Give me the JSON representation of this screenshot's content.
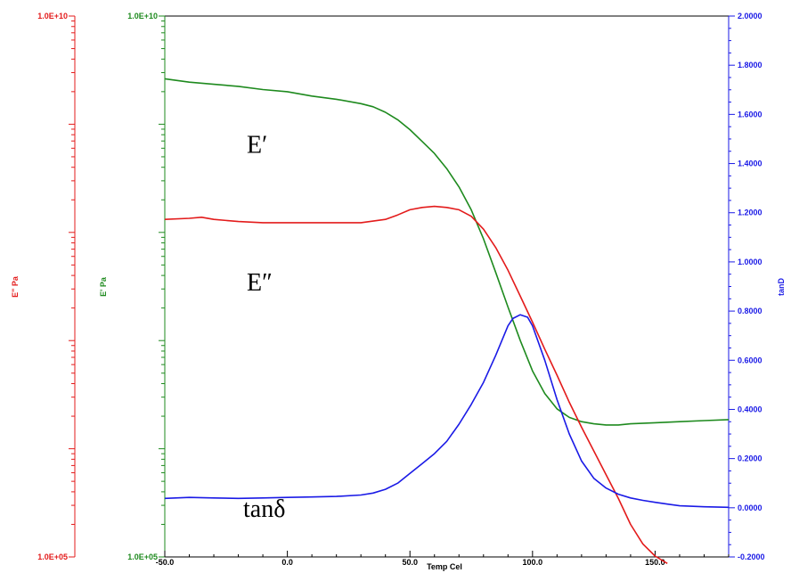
{
  "chart_data": {
    "type": "line",
    "title": "",
    "xlabel": "Temp Cel",
    "xlim": [
      -50,
      180
    ],
    "x_ticks": [
      -50,
      0,
      50,
      100,
      150
    ],
    "x_tick_labels": [
      "-50.0",
      "0.0",
      "50.0",
      "100.0",
      "150.0"
    ],
    "grid": false,
    "legend": "none",
    "axes": {
      "e_double_prime": {
        "label": "E\" Pa",
        "scale": "log",
        "lim": [
          100000,
          10000000000
        ],
        "tick_labels": [
          "1.0E+05",
          "1.0E+10"
        ],
        "color": "#e31b1b"
      },
      "e_prime": {
        "label": "E' Pa",
        "scale": "log",
        "lim": [
          100000,
          10000000000
        ],
        "tick_labels": [
          "1.0E+05",
          "1.0E+10"
        ],
        "color": "#1e8a1e"
      },
      "tan_d": {
        "label": "tanD",
        "scale": "linear",
        "lim": [
          -0.2,
          2.0
        ],
        "ticks": [
          -0.2,
          0.0,
          0.2,
          0.4,
          0.6,
          0.8,
          1.0,
          1.2,
          1.4,
          1.6,
          1.8,
          2.0
        ],
        "tick_labels": [
          "-0.2000",
          "0.0000",
          "0.2000",
          "0.4000",
          "0.6000",
          "0.8000",
          "1.0000",
          "1.2000",
          "1.4000",
          "1.6000",
          "1.8000",
          "2.0000"
        ],
        "color": "#1a1ae6"
      }
    },
    "series": [
      {
        "key": "e_prime",
        "axis": "e_prime",
        "color": "#1e8a1e",
        "x": [
          -50,
          -40,
          -30,
          -20,
          -10,
          0,
          10,
          20,
          30,
          35,
          40,
          45,
          50,
          55,
          60,
          65,
          70,
          75,
          80,
          85,
          90,
          95,
          100,
          105,
          110,
          115,
          120,
          125,
          130,
          135,
          140,
          150,
          160,
          170,
          180
        ],
        "y": [
          2630000000,
          2450000000,
          2340000000,
          2240000000,
          2090000000,
          2000000000,
          1820000000,
          1700000000,
          1550000000,
          1450000000,
          1290000000,
          1100000000,
          891000000,
          692000000,
          537000000,
          389000000,
          263000000,
          162000000,
          87100000,
          42700000,
          20400000,
          10000000,
          5250000,
          3240000,
          2340000,
          1950000,
          1780000,
          1700000,
          1660000,
          1660000,
          1700000,
          1740000,
          1780000,
          1820000,
          1860000
        ]
      },
      {
        "key": "e_double_prime",
        "axis": "e_double_prime",
        "color": "#e31b1b",
        "x": [
          -50,
          -40,
          -35,
          -30,
          -20,
          -10,
          0,
          10,
          20,
          30,
          40,
          45,
          50,
          55,
          60,
          65,
          70,
          75,
          80,
          85,
          90,
          95,
          100,
          105,
          110,
          115,
          120,
          125,
          130,
          135,
          140,
          145,
          150,
          155
        ],
        "y": [
          132000000,
          135000000,
          138000000,
          132000000,
          126000000,
          123000000,
          123000000,
          123000000,
          123000000,
          123000000,
          132000000,
          145000000,
          162000000,
          170000000,
          174000000,
          170000000,
          162000000,
          141000000,
          107000000,
          72400000,
          44700000,
          25700000,
          14800000,
          8320000,
          4790000,
          2690000,
          1580000,
          955000,
          575000,
          347000,
          200000,
          132000,
          102000,
          87100
        ]
      },
      {
        "key": "tan_d",
        "axis": "tan_d",
        "color": "#1a1ae6",
        "x": [
          -50,
          -40,
          -30,
          -20,
          -10,
          0,
          10,
          20,
          30,
          35,
          40,
          45,
          50,
          55,
          60,
          65,
          70,
          75,
          80,
          85,
          90,
          92,
          95,
          98,
          100,
          105,
          110,
          115,
          120,
          125,
          130,
          135,
          140,
          145,
          150,
          155,
          160,
          170,
          180
        ],
        "y": [
          0.038,
          0.042,
          0.04,
          0.038,
          0.04,
          0.042,
          0.044,
          0.046,
          0.052,
          0.06,
          0.075,
          0.1,
          0.14,
          0.18,
          0.22,
          0.27,
          0.34,
          0.42,
          0.51,
          0.62,
          0.74,
          0.77,
          0.785,
          0.775,
          0.74,
          0.6,
          0.44,
          0.3,
          0.19,
          0.12,
          0.08,
          0.055,
          0.04,
          0.03,
          0.022,
          0.015,
          0.008,
          0.004,
          0.002
        ]
      }
    ],
    "annotations": [
      {
        "text": "E′",
        "x": 0,
        "y": 1.48
      },
      {
        "text": "E″",
        "x": 0,
        "y": 0.92
      },
      {
        "text": "tanδ",
        "x": 0,
        "y": 0.0
      }
    ]
  }
}
